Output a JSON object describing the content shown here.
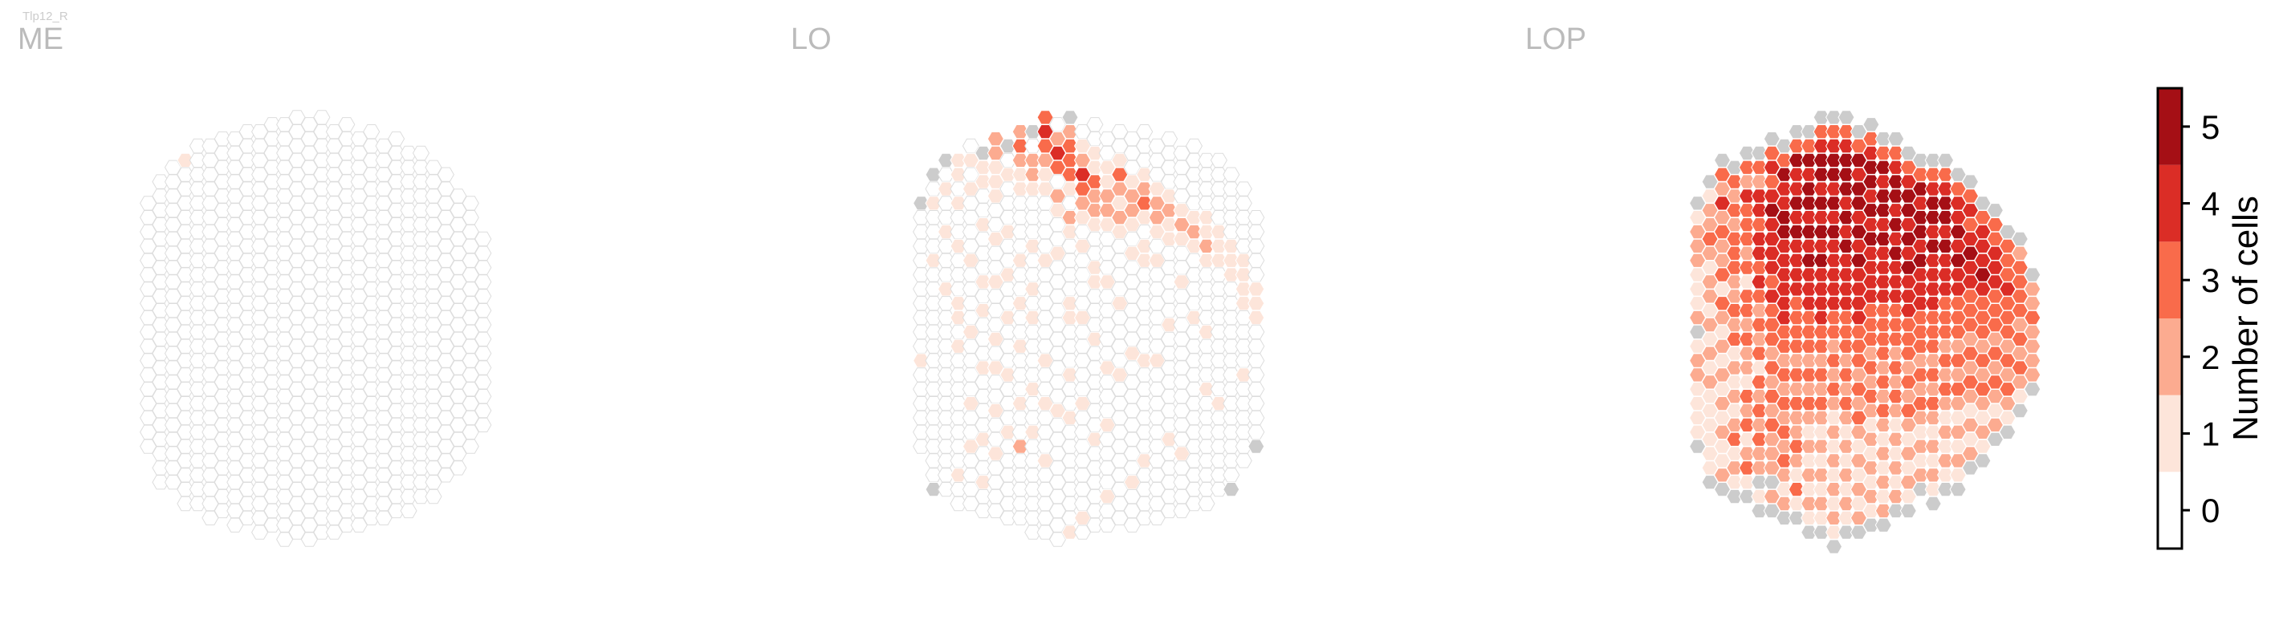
{
  "figure": {
    "tag": "Tlp12_R",
    "colors": {
      "empty": "#ffffff",
      "empty_stroke": "#dddddd",
      "no_column": "#cccccc",
      "title": "#bbbbbb",
      "bins": [
        "#ffffff",
        "#fde5da",
        "#fcab90",
        "#f96b4b",
        "#db2d26",
        "#a50f15"
      ]
    }
  },
  "chart_data": [
    {
      "type": "heatmap",
      "subtype": "hexagonal-eye-map",
      "title": "ME",
      "summary": "All columns 0 cells except a single column with 1 cell near the upper-left edge",
      "rows": [
        {
          "q": -12,
          "values": "000000000000000000"
        },
        {
          "q": -11,
          "values": "0000000000000000000000"
        },
        {
          "q": -10,
          "values": "00000000000000000000000"
        },
        {
          "q": -9,
          "values": "1000000000000000000000000"
        },
        {
          "q": -8,
          "values": "00000000000000000000000000"
        },
        {
          "q": -7,
          "values": "000000000000000000000000000"
        },
        {
          "q": -6,
          "values": "000000000000000000000000000"
        },
        {
          "q": -5,
          "values": "0000000000000000000000000000"
        },
        {
          "q": -4,
          "values": "0000000000000000000000000000"
        },
        {
          "q": -3,
          "values": "00000000000000000000000000000"
        },
        {
          "q": -2,
          "values": "00000000000000000000000000000"
        },
        {
          "q": -1,
          "values": "000000000000000000000000000000"
        },
        {
          "q": 0,
          "values": "000000000000000000000000000000"
        },
        {
          "q": 1,
          "values": "000000000000000000000000000000"
        },
        {
          "q": 2,
          "values": "000000000000000000000000000000"
        },
        {
          "q": 3,
          "values": "00000000000000000000000000000"
        },
        {
          "q": 4,
          "values": "00000000000000000000000000000"
        },
        {
          "q": 5,
          "values": "0000000000000000000000000000"
        },
        {
          "q": 6,
          "values": "0000000000000000000000000000"
        },
        {
          "q": 7,
          "values": "000000000000000000000000000"
        },
        {
          "q": 8,
          "values": "000000000000000000000000000"
        },
        {
          "q": 9,
          "values": "00000000000000000000000000"
        },
        {
          "q": 10,
          "values": "0000000000000000000000000"
        },
        {
          "q": 11,
          "values": "000000000000000000000000"
        },
        {
          "q": 12,
          "values": "0000000000000000000000"
        },
        {
          "q": 13,
          "values": "00000000000000000000"
        },
        {
          "q": 14,
          "values": "000000000000000000"
        },
        {
          "q": 15,
          "values": "00000000000000"
        }
      ]
    },
    {
      "type": "heatmap",
      "subtype": "hexagonal-eye-map",
      "title": "LO",
      "summary": "Mostly 0-1 cells; 2-4 cells concentrated along the left edge; grey = no column",
      "rows": [
        {
          "q": -12,
          "values": "x00000000001000000"
        },
        {
          "q": -11,
          "values": "x010001000000000000000x"
        },
        {
          "q": -10,
          "values": "x01001000100000000000000"
        },
        {
          "q": -9,
          "values": "1101001000110100000000100"
        },
        {
          "q": -8,
          "values": "01010000100001000010010000"
        },
        {
          "q": -7,
          "values": "x1100100010100010000100100"
        },
        {
          "q": -6,
          "values": "221110010010001010010010000"
        },
        {
          "q": -5,
          "values": "x01000100100100010001000000"
        },
        {
          "q": -4,
          "values": "2321100001001001000100200000"
        },
        {
          "q": -3,
          "values": "x0221000100101000010010000000"
        },
        {
          "q": -2,
          "values": "343211000010000001001000100000"
        },
        {
          "q": -1,
          "values": "024302100100000000001000000000"
        },
        {
          "q": 0,
          "values": "x23331021000011000100100000001"
        },
        {
          "q": 1,
          "values": "01243210100001000001000000010"
        },
        {
          "q": 2,
          "values": "00113221001100010000001000000"
        },
        {
          "q": 3,
          "values": "0011221000100000100010000100"
        },
        {
          "q": 4,
          "values": "0013212100001000010000000000"
        },
        {
          "q": 5,
          "values": "0001221010000001000000001000"
        },
        {
          "q": 6,
          "values": "0001231011000000100000010000"
        },
        {
          "q": 7,
          "values": "000122101000000100000000000"
        },
        {
          "q": 8,
          "values": "000012110000010000000100000"
        },
        {
          "q": 9,
          "values": "00001210010000000000010000"
        },
        {
          "q": 10,
          "values": "00000121000010000000000000"
        },
        {
          "q": 11,
          "values": "0000112100001000100000000"
        },
        {
          "q": 12,
          "values": "000001110000000001000000"
        },
        {
          "q": 13,
          "values": "0000011100000000000000x"
        },
        {
          "q": 14,
          "values": "00000111100001000000"
        },
        {
          "q": 15,
          "values": "0000011100000000x"
        }
      ]
    },
    {
      "type": "heatmap",
      "subtype": "hexagonal-eye-map",
      "title": "LOP",
      "summary": "Dense: 4-5 cells in a band on the left half, 2-3 cells elsewhere, lighter toward the right; grey = no column",
      "rows": [
        {
          "q": -12,
          "values": "x12221112x1221111x"
        },
        {
          "q": -11,
          "values": "x12232122121212111111x"
        },
        {
          "q": -10,
          "values": "x3242322313212121212112x"
        },
        {
          "q": -9,
          "values": "x3232333223231212123121x"
        },
        {
          "q": -8,
          "values": "x32433323133232213231231x"
        },
        {
          "q": -7,
          "values": "x3244344343232313232322x1x"
        },
        {
          "q": -6,
          "values": "x34345444434333232323222x2x"
        },
        {
          "q": -5,
          "values": "x3544554444443323232323212x"
        },
        {
          "q": -4,
          "values": "x35445454444333323232232131x"
        },
        {
          "q": -3,
          "values": "x354554545444333232321212121x"
        },
        {
          "q": -2,
          "values": "x3455454545444433232321212121x"
        },
        {
          "q": -1,
          "values": "x34554545444443323232121212121x"
        },
        {
          "q": 0,
          "values": "x3455545454444333232321212121x"
        },
        {
          "q": 1,
          "values": "x354554545444433323232121212x"
        },
        {
          "q": 2,
          "values": "x345545454444333232321212121x"
        },
        {
          "q": 3,
          "values": "x35455454444333323232121212x"
        },
        {
          "q": 4,
          "values": "x3455454544433323232121212x"
        },
        {
          "q": 5,
          "values": "x345545454443332323212121x"
        },
        {
          "q": 6,
          "values": "x3545545444333232321212x"
        },
        {
          "q": 7,
          "values": "x34554544443332323212121x"
        },
        {
          "q": 8,
          "values": "x3455454443332323212121x"
        },
        {
          "q": 9,
          "values": "x344545443332323212121x"
        },
        {
          "q": 10,
          "values": "x3434544333232321212x"
        },
        {
          "q": 11,
          "values": "x34445433323232121x"
        },
        {
          "q": 12,
          "values": "x334443332323212x"
        },
        {
          "q": 13,
          "values": "x3334333232321x"
        },
        {
          "q": 14,
          "values": "x23333232321x"
        },
        {
          "q": 15,
          "values": "x2232222x"
        }
      ]
    }
  ],
  "colorbar": {
    "label": "Number of cells",
    "ticks": [
      "0",
      "1",
      "2",
      "3",
      "4",
      "5"
    ],
    "range": [
      -0.5,
      5.5
    ]
  }
}
